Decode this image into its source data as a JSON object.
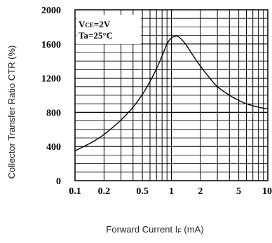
{
  "chart_data": {
    "type": "line",
    "xlabel_main": "Forward Current I",
    "xlabel_sub": "F",
    "xlabel_unit": " (mA)",
    "ylabel": "Collector Transfer Ratio CTR (%)",
    "x_scale": "log",
    "xlim": [
      0.1,
      10
    ],
    "ylim": [
      0,
      2000
    ],
    "grid": true,
    "x_ticks": [
      {
        "v": 0.1,
        "label": "0.1"
      },
      {
        "v": 0.2,
        "label": "0.2"
      },
      {
        "v": 0.5,
        "label": "0.5"
      },
      {
        "v": 1,
        "label": "1"
      },
      {
        "v": 2,
        "label": "2"
      },
      {
        "v": 5,
        "label": "5"
      },
      {
        "v": 10,
        "label": "10"
      }
    ],
    "y_ticks": [
      {
        "v": 0,
        "label": "0"
      },
      {
        "v": 400,
        "label": "400"
      },
      {
        "v": 800,
        "label": "800"
      },
      {
        "v": 1200,
        "label": "1200"
      },
      {
        "v": 1600,
        "label": "1600"
      },
      {
        "v": 2000,
        "label": "2000"
      }
    ],
    "annotations": {
      "vce_prefix": "V",
      "vce_sub": "CE",
      "vce_value": "=2V",
      "ta": "Ta=25°C"
    },
    "series": [
      {
        "color": "#000000",
        "x": [
          0.1,
          0.15,
          0.2,
          0.3,
          0.4,
          0.5,
          0.6,
          0.7,
          0.8,
          0.9,
          1.0,
          1.1,
          1.2,
          1.4,
          1.6,
          2.0,
          2.5,
          3.0,
          4.0,
          5.0,
          6.0,
          8.0,
          10.0
        ],
        "y": [
          350,
          450,
          540,
          710,
          860,
          1010,
          1160,
          1310,
          1460,
          1600,
          1670,
          1690,
          1680,
          1600,
          1500,
          1340,
          1200,
          1100,
          1000,
          940,
          900,
          860,
          840
        ]
      }
    ]
  }
}
